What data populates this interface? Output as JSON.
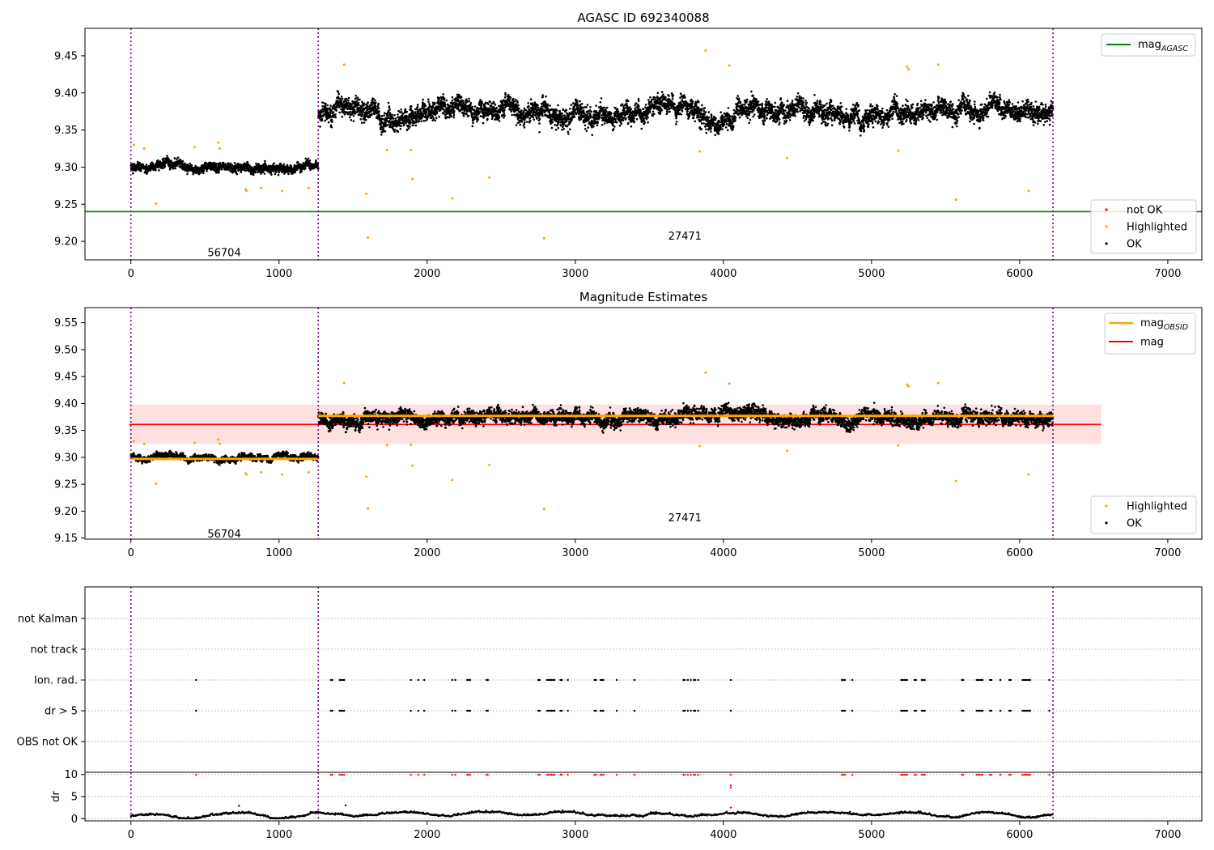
{
  "colors": {
    "ok": "#000000",
    "highlighted": "#ffa500",
    "not_ok": "#ff0000",
    "mag_agasc": "#008000",
    "mag_obsid": "#ffa500",
    "mag": "#ff0000",
    "band": "#ffdddd",
    "obs_boundary": "#800080",
    "grid": "#b0b0b0"
  },
  "chart_data": [
    {
      "type": "scatter",
      "title": "AGASC ID 692340088",
      "xlim": [
        -310,
        7230
      ],
      "ylim": [
        9.175,
        9.487
      ],
      "xticks": [
        0,
        1000,
        2000,
        3000,
        4000,
        5000,
        6000,
        7000
      ],
      "yticks": [
        "9.20",
        "9.25",
        "9.30",
        "9.35",
        "9.40",
        "9.45"
      ],
      "obs_boundaries": [
        0,
        1265,
        6225
      ],
      "obsids": [
        {
          "label": "56704",
          "x": 630,
          "y": 9.185
        },
        {
          "label": "27471",
          "x": 3740,
          "y": 9.207
        }
      ],
      "segments": [
        {
          "x_range": [
            0,
            1265
          ],
          "mean": 9.3,
          "spread": 0.008
        },
        {
          "x_range": [
            1265,
            6225
          ],
          "mean": 9.375,
          "spread": 0.018
        }
      ],
      "hlines": [
        {
          "name": "mag_AGASC",
          "legend_main": "mag",
          "legend_sub": "AGASC",
          "y": 9.24
        }
      ],
      "highlighted_points": [
        [
          20,
          9.33
        ],
        [
          90,
          9.325
        ],
        [
          170,
          9.251
        ],
        [
          430,
          9.327
        ],
        [
          590,
          9.333
        ],
        [
          600,
          9.325
        ],
        [
          775,
          9.27
        ],
        [
          780,
          9.268
        ],
        [
          880,
          9.272
        ],
        [
          1020,
          9.268
        ],
        [
          1200,
          9.272
        ],
        [
          1440,
          9.438
        ],
        [
          1590,
          9.264
        ],
        [
          1600,
          9.205
        ],
        [
          1730,
          9.323
        ],
        [
          1890,
          9.323
        ],
        [
          1900,
          9.284
        ],
        [
          2170,
          9.258
        ],
        [
          2420,
          9.286
        ],
        [
          2790,
          9.204
        ],
        [
          3840,
          9.321
        ],
        [
          3880,
          9.457
        ],
        [
          4040,
          9.437
        ],
        [
          4430,
          9.312
        ],
        [
          5180,
          9.322
        ],
        [
          5240,
          9.435
        ],
        [
          5250,
          9.432
        ],
        [
          5450,
          9.438
        ],
        [
          5570,
          9.256
        ],
        [
          6060,
          9.268
        ]
      ],
      "legends": [
        {
          "position": "upper right",
          "entries": [
            "mag_AGASC"
          ]
        },
        {
          "position": "lower right",
          "entries": [
            "not OK",
            "Highlighted",
            "OK"
          ]
        }
      ]
    },
    {
      "type": "scatter",
      "title": "Magnitude Estimates",
      "xlim": [
        -310,
        7230
      ],
      "ylim": [
        9.148,
        9.578
      ],
      "xticks": [
        0,
        1000,
        2000,
        3000,
        4000,
        5000,
        6000,
        7000
      ],
      "yticks": [
        "9.15",
        "9.20",
        "9.25",
        "9.30",
        "9.35",
        "9.40",
        "9.45",
        "9.50",
        "9.55"
      ],
      "obs_boundaries": [
        0,
        1265,
        6225
      ],
      "obsids": [
        {
          "label": "56704",
          "x": 630,
          "y": 9.158
        },
        {
          "label": "27471",
          "x": 3740,
          "y": 9.188
        }
      ],
      "segments": [
        {
          "x_range": [
            0,
            1265
          ],
          "mean": 9.3,
          "spread": 0.008,
          "mag_obsid": 9.297
        },
        {
          "x_range": [
            1265,
            6225
          ],
          "mean": 9.375,
          "spread": 0.018,
          "mag_obsid": 9.377
        }
      ],
      "mag": {
        "y": 9.361,
        "band": [
          9.325,
          9.398
        ],
        "x_range": [
          -10,
          6550
        ]
      },
      "highlighted_points": [
        [
          20,
          9.33
        ],
        [
          90,
          9.325
        ],
        [
          170,
          9.251
        ],
        [
          430,
          9.327
        ],
        [
          590,
          9.333
        ],
        [
          600,
          9.325
        ],
        [
          775,
          9.27
        ],
        [
          780,
          9.268
        ],
        [
          880,
          9.272
        ],
        [
          1020,
          9.268
        ],
        [
          1200,
          9.272
        ],
        [
          1440,
          9.438
        ],
        [
          1590,
          9.264
        ],
        [
          1600,
          9.205
        ],
        [
          1730,
          9.323
        ],
        [
          1890,
          9.323
        ],
        [
          1900,
          9.284
        ],
        [
          2170,
          9.258
        ],
        [
          2420,
          9.286
        ],
        [
          2790,
          9.204
        ],
        [
          3840,
          9.321
        ],
        [
          3880,
          9.457
        ],
        [
          4040,
          9.437
        ],
        [
          4430,
          9.312
        ],
        [
          5180,
          9.322
        ],
        [
          5240,
          9.435
        ],
        [
          5250,
          9.432
        ],
        [
          5450,
          9.438
        ],
        [
          5570,
          9.256
        ],
        [
          6060,
          9.268
        ]
      ],
      "legends": [
        {
          "position": "upper right",
          "entries": [
            "mag_OBSID",
            "mag"
          ]
        },
        {
          "position": "lower right",
          "entries": [
            "Highlighted",
            "OK"
          ]
        }
      ]
    },
    {
      "type": "scatter",
      "title": "",
      "xlim": [
        -310,
        7230
      ],
      "categories": [
        "not Kalman",
        "not track",
        "Ion. rad.",
        "dr > 5",
        "OBS not OK"
      ],
      "obs_boundaries": [
        0,
        1265,
        6225
      ],
      "flag_x": [
        440,
        1350,
        1360,
        1410,
        1420,
        1430,
        1440,
        1890,
        1940,
        1980,
        2170,
        2190,
        2270,
        2280,
        2290,
        2400,
        2410,
        2750,
        2760,
        2810,
        2820,
        2830,
        2840,
        2850,
        2860,
        2900,
        2910,
        2950,
        3130,
        3140,
        3170,
        3180,
        3190,
        3280,
        3400,
        3730,
        3740,
        3760,
        3780,
        3800,
        3810,
        3830,
        4050,
        4800,
        4810,
        4820,
        4870,
        5200,
        5210,
        5220,
        5230,
        5240,
        5290,
        5300,
        5340,
        5350,
        5360,
        5610,
        5620,
        5710,
        5720,
        5730,
        5740,
        5750,
        5800,
        5810,
        5870,
        5930,
        5940,
        6020,
        6030,
        6040,
        6050,
        6060,
        6070,
        6200
      ]
    },
    {
      "type": "scatter",
      "title": "",
      "ylabel": "dr",
      "xlim": [
        -310,
        7230
      ],
      "ylim": [
        -0.5,
        10.5
      ],
      "xticks": [
        0,
        1000,
        2000,
        3000,
        4000,
        5000,
        6000,
        7000
      ],
      "yticks": [
        "0",
        "5",
        "10"
      ],
      "obs_boundaries": [
        0,
        1265,
        6225
      ],
      "clip_value": 10,
      "extra_points": [
        [
          730,
          2.9
        ],
        [
          1450,
          3.0
        ],
        [
          4050,
          7.0
        ],
        [
          4050,
          7.5
        ],
        [
          4050,
          2.5
        ]
      ]
    }
  ]
}
